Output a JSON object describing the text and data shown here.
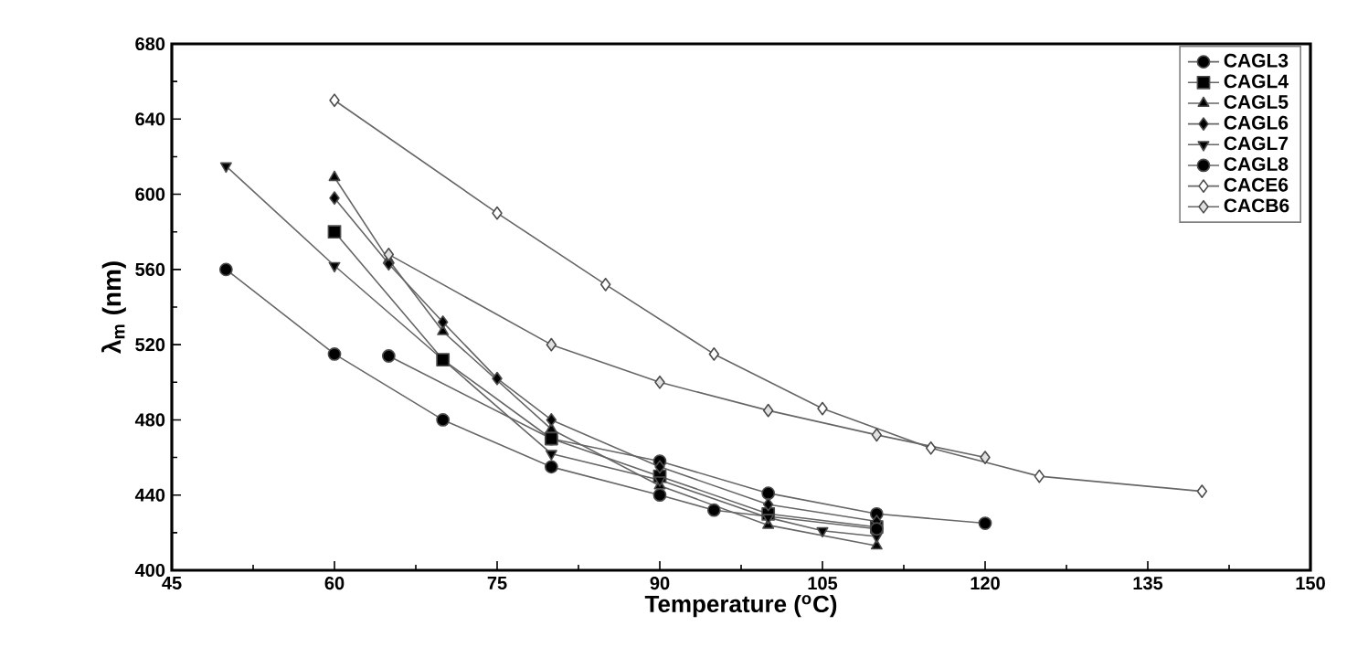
{
  "chart_data": {
    "type": "line",
    "xlabel": "Temperature ($^{o}$C)",
    "ylabel": "λ$_{m}$ (nm)",
    "xlim": [
      45,
      150
    ],
    "xticks": [
      45,
      60,
      75,
      90,
      105,
      120,
      135,
      150
    ],
    "ylim": [
      400,
      680
    ],
    "yticks": [
      400,
      440,
      480,
      520,
      560,
      600,
      640,
      680
    ],
    "grid": false,
    "legend": "top right",
    "line_style": "solid",
    "series": [
      {
        "name": "CAGL3",
        "color": "#000000",
        "marker": "circle",
        "x": [
          65,
          80,
          90,
          100,
          110,
          120
        ],
        "values": [
          514,
          470,
          458,
          441,
          430,
          425
        ]
      },
      {
        "name": "CAGL4",
        "color": "#000000",
        "marker": "square",
        "x": [
          60,
          70,
          80,
          90,
          100,
          110
        ],
        "values": [
          580,
          512,
          470,
          450,
          430,
          423
        ]
      },
      {
        "name": "CAGL5",
        "color": "#000000",
        "marker": "triangle",
        "x": [
          60,
          65,
          70,
          80,
          90,
          100,
          110
        ],
        "values": [
          609,
          565,
          527,
          475,
          445,
          424,
          413
        ]
      },
      {
        "name": "CAGL6",
        "color": "#000000",
        "marker": "diamond",
        "x": [
          60,
          65,
          70,
          75,
          80,
          90,
          100,
          110
        ],
        "values": [
          598,
          563,
          532,
          502,
          480,
          455,
          435,
          426
        ]
      },
      {
        "name": "CAGL7",
        "color": "#000000",
        "marker": "triangle down",
        "x": [
          50,
          60,
          80,
          90,
          100,
          105,
          110
        ],
        "values": [
          615,
          562,
          462,
          448,
          428,
          421,
          418
        ]
      },
      {
        "name": "CAGL8",
        "color": "#000000",
        "marker": "circle",
        "x": [
          50,
          60,
          70,
          80,
          90,
          95,
          110
        ],
        "values": [
          560,
          515,
          480,
          455,
          440,
          432,
          422
        ]
      },
      {
        "name": "CACE6",
        "color": "#ffffff",
        "marker": "diamond",
        "x": [
          60,
          75,
          85,
          95,
          105,
          115,
          125,
          140
        ],
        "values": [
          650,
          590,
          552,
          515,
          486,
          465,
          450,
          442
        ]
      },
      {
        "name": "CACB6",
        "color": "#e0e0e0",
        "marker": "diamond",
        "x": [
          65,
          80,
          90,
          100,
          110,
          120
        ],
        "values": [
          568,
          520,
          500,
          485,
          472,
          460
        ]
      }
    ]
  }
}
